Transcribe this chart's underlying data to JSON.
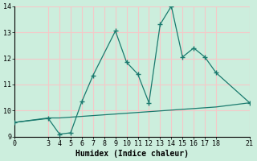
{
  "xlabel": "Humidex (Indice chaleur)",
  "ylabel": "",
  "bg_color": "#cceedd",
  "grid_color": "#e8e8e8",
  "line_color": "#1a7a6e",
  "xlim": [
    0,
    21
  ],
  "ylim": [
    9,
    14
  ],
  "yticks": [
    9,
    10,
    11,
    12,
    13,
    14
  ],
  "xticks": [
    0,
    3,
    4,
    5,
    6,
    7,
    8,
    9,
    10,
    11,
    12,
    13,
    14,
    15,
    16,
    17,
    18,
    21
  ],
  "data_x": [
    0,
    3,
    4,
    5,
    6,
    7,
    9,
    10,
    11,
    12,
    13,
    14,
    15,
    16,
    17,
    18,
    21
  ],
  "data_y": [
    9.55,
    9.7,
    9.1,
    9.15,
    10.35,
    11.35,
    13.05,
    11.85,
    11.4,
    10.3,
    13.3,
    14.0,
    12.05,
    12.4,
    12.05,
    11.45,
    10.3
  ],
  "trend_x": [
    0,
    3,
    4,
    5,
    6,
    7,
    8,
    9,
    10,
    11,
    12,
    13,
    14,
    15,
    16,
    17,
    18,
    21
  ],
  "trend_y": [
    9.55,
    9.72,
    9.72,
    9.75,
    9.78,
    9.81,
    9.84,
    9.87,
    9.9,
    9.93,
    9.96,
    9.99,
    10.02,
    10.05,
    10.08,
    10.11,
    10.14,
    10.3
  ]
}
